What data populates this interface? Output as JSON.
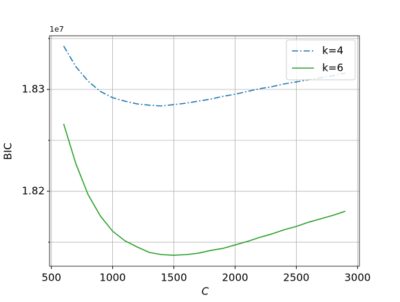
{
  "chart_data": {
    "type": "line",
    "xlabel": "C",
    "ylabel": "BIC",
    "offset_text": "1e7",
    "x": [
      600,
      700,
      800,
      900,
      1000,
      1100,
      1200,
      1300,
      1400,
      1500,
      1600,
      1700,
      1800,
      1900,
      2000,
      2100,
      2200,
      2300,
      2400,
      2500,
      2600,
      2700,
      2800,
      2900
    ],
    "series": [
      {
        "name": "k=4",
        "color": "#1f77b4",
        "dash": "dashdot",
        "values": [
          1.83426,
          1.83223,
          1.83081,
          1.8298,
          1.82919,
          1.82885,
          1.82858,
          1.82845,
          1.82838,
          1.82851,
          1.82865,
          1.82885,
          1.82905,
          1.82932,
          1.82953,
          1.8298,
          1.83007,
          1.83027,
          1.83054,
          1.83074,
          1.83095,
          1.83115,
          1.83135,
          1.83162
        ]
      },
      {
        "name": "k=6",
        "color": "#2ca02c",
        "dash": "solid",
        "values": [
          1.82662,
          1.8227,
          1.81966,
          1.81757,
          1.81608,
          1.81514,
          1.81453,
          1.81399,
          1.81378,
          1.81372,
          1.81378,
          1.81392,
          1.81419,
          1.81439,
          1.81473,
          1.81507,
          1.81547,
          1.81581,
          1.81622,
          1.81655,
          1.81696,
          1.8173,
          1.81764,
          1.81804
        ]
      }
    ],
    "xlim": [
      485,
      3015
    ],
    "xticks": [
      500,
      1000,
      1500,
      2000,
      2500,
      3000
    ],
    "ylim": [
      1.81264,
      1.83527
    ],
    "yticks": [
      1.82,
      1.83
    ],
    "yminor_ticks": [
      1.815,
      1.825,
      1.835
    ],
    "grid": true,
    "legend": "upper-right"
  }
}
